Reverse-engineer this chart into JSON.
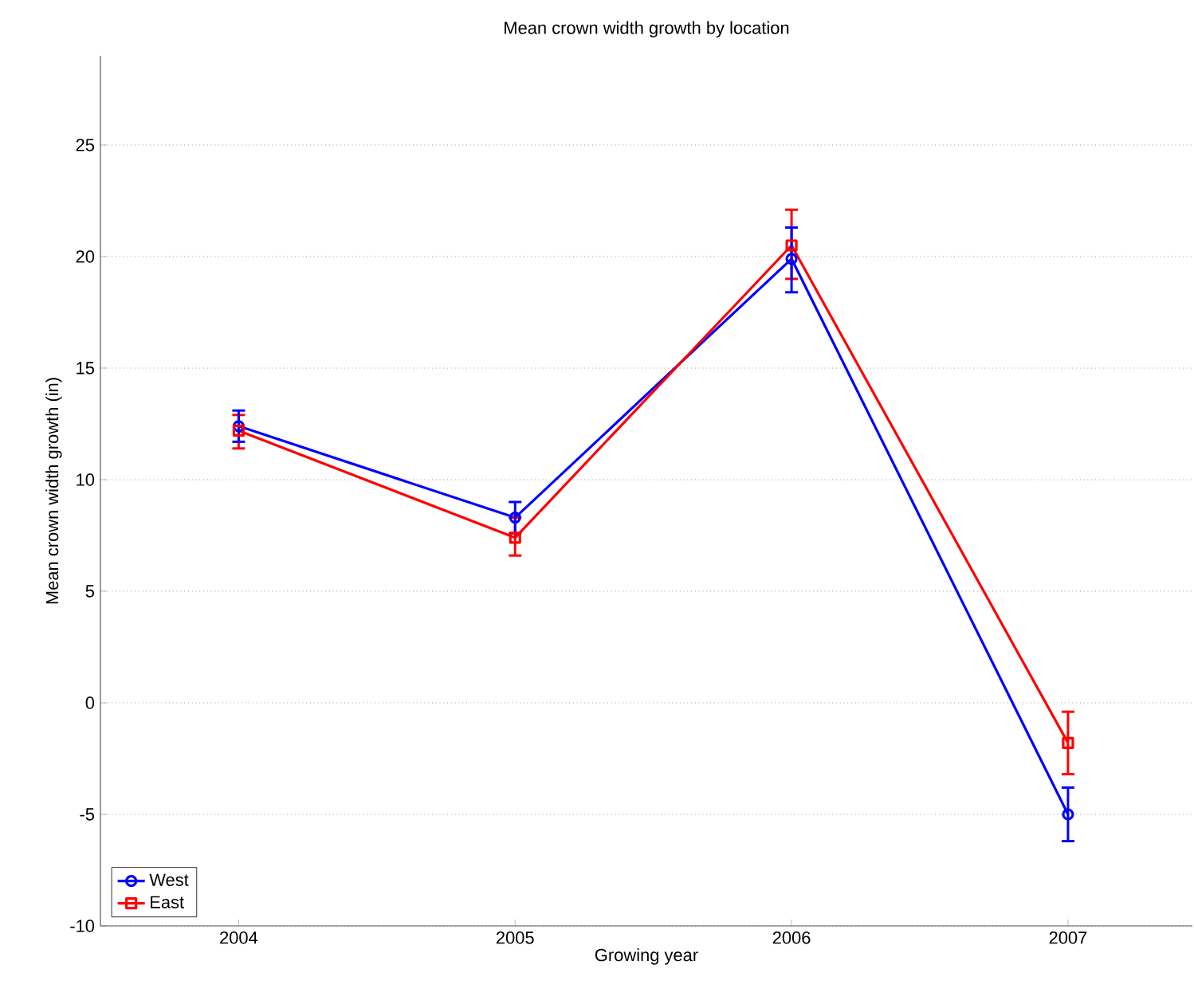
{
  "chart_data": {
    "type": "line",
    "title": "Mean crown width growth by location",
    "xlabel": "Growing year",
    "ylabel": "Mean crown width growth (in)",
    "x": [
      2004,
      2005,
      2006,
      2007
    ],
    "series": [
      {
        "name": "West",
        "color": "#0000ff",
        "marker": "circle",
        "values": [
          12.4,
          8.3,
          19.9,
          -5.0
        ],
        "errors": [
          [
            11.7,
            13.1
          ],
          [
            7.6,
            9.0
          ],
          [
            18.4,
            21.3
          ],
          [
            -6.2,
            -3.8
          ]
        ]
      },
      {
        "name": "East",
        "color": "#ff0000",
        "marker": "square",
        "values": [
          12.2,
          7.4,
          20.5,
          -1.8
        ],
        "errors": [
          [
            11.4,
            12.9
          ],
          [
            6.6,
            8.3
          ],
          [
            19.0,
            22.1
          ],
          [
            -3.2,
            -0.4
          ]
        ]
      }
    ],
    "xlim": [
      2003.5,
      2007.45
    ],
    "ylim": [
      -10,
      29
    ],
    "xticks": [
      2004,
      2005,
      2006,
      2007
    ],
    "yticks": [
      -10,
      -5,
      0,
      5,
      10,
      15,
      20,
      25
    ],
    "grid": "y",
    "legend": "bottom left",
    "line_style": "solid"
  }
}
